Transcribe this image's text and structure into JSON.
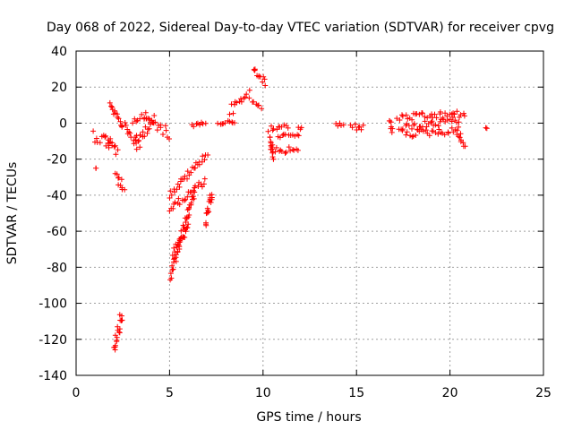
{
  "chart_data": {
    "type": "scatter",
    "title": "Day 068 of 2022, Sidereal Day-to-day VTEC variation (SDTVAR) for receiver cpvg",
    "xlabel": "GPS time / hours",
    "ylabel": "SDTVAR / TECUs",
    "xlim": [
      0,
      25
    ],
    "ylim": [
      -140,
      40
    ],
    "xticks": [
      0,
      5,
      10,
      15,
      20,
      25
    ],
    "yticks": [
      -140,
      -120,
      -100,
      -80,
      -60,
      -40,
      -20,
      0,
      20,
      40
    ],
    "xtick_labels": [
      "0",
      "5",
      "10",
      "15",
      "20",
      "25"
    ],
    "ytick_labels": [
      "-140",
      "-120",
      "-100",
      "-80",
      "-60",
      "-40",
      "-20",
      "0",
      "20",
      "40"
    ],
    "grid": true,
    "marker": "+",
    "color": "#ff0000",
    "segments": [
      {
        "name": "early-cluster",
        "x": [
          0.9,
          1.9
        ],
        "y": [
          -6,
          -12
        ],
        "spread": 4
      },
      {
        "name": "early-descent",
        "x": [
          1.6,
          2.2
        ],
        "y": [
          -8,
          -16
        ],
        "spread": 3
      },
      {
        "name": "lone-point",
        "x": [
          1.05,
          1.05
        ],
        "y": [
          -25,
          -25
        ],
        "spread": 0
      },
      {
        "name": "rise-1.9",
        "x": [
          1.8,
          2.5
        ],
        "y": [
          10,
          -2
        ],
        "spread": 1.5
      },
      {
        "name": "fall-2.3",
        "x": [
          2.1,
          2.4
        ],
        "y": [
          -28,
          -31
        ],
        "spread": 1
      },
      {
        "name": "fall-2.4",
        "x": [
          2.3,
          2.55
        ],
        "y": [
          -34,
          -37
        ],
        "spread": 1
      },
      {
        "name": "deep-low",
        "x": [
          2.05,
          2.45
        ],
        "y": [
          -124,
          -106
        ],
        "spread": 4
      },
      {
        "name": "hump-3",
        "x": [
          2.6,
          3.4
        ],
        "y": [
          -2,
          -14
        ],
        "spread": 3
      },
      {
        "name": "hump-3.5",
        "x": [
          3.2,
          4.2
        ],
        "y": [
          -10,
          2
        ],
        "spread": 3
      },
      {
        "name": "hump-4",
        "x": [
          3.7,
          5.0
        ],
        "y": [
          3,
          -6
        ],
        "spread": 3
      },
      {
        "name": "hump-4b",
        "x": [
          3.0,
          3.9
        ],
        "y": [
          2,
          4
        ],
        "spread": 2
      },
      {
        "name": "diag-upper",
        "x": [
          5.0,
          7.0
        ],
        "y": [
          -40,
          -17
        ],
        "spread": 2
      },
      {
        "name": "diag-middle",
        "x": [
          5.0,
          6.9
        ],
        "y": [
          -48,
          -32
        ],
        "spread": 2
      },
      {
        "name": "diag-lower",
        "x": [
          5.05,
          6.35
        ],
        "y": [
          -86,
          -36
        ],
        "spread": 3
      },
      {
        "name": "diag-lower-b",
        "x": [
          5.2,
          6.0
        ],
        "y": [
          -72,
          -58
        ],
        "spread": 2
      },
      {
        "name": "block-7",
        "x": [
          6.9,
          7.3
        ],
        "y": [
          -56,
          -38
        ],
        "spread": 3
      },
      {
        "name": "flat-6.4",
        "x": [
          6.2,
          6.9
        ],
        "y": [
          -1,
          -1
        ],
        "spread": 1.5
      },
      {
        "name": "flat-8",
        "x": [
          7.6,
          8.5
        ],
        "y": [
          0,
          1
        ],
        "spread": 1
      },
      {
        "name": "rise-8.4",
        "x": [
          8.2,
          9.3
        ],
        "y": [
          7,
          16
        ],
        "spread": 3
      },
      {
        "name": "rise-9.7",
        "x": [
          9.5,
          10.1
        ],
        "y": [
          31,
          22
        ],
        "spread": 2
      },
      {
        "name": "drop-9.6",
        "x": [
          9.4,
          9.9
        ],
        "y": [
          12,
          9
        ],
        "spread": 1
      },
      {
        "name": "band-10.5a",
        "x": [
          10.4,
          11.9
        ],
        "y": [
          -15,
          -15
        ],
        "spread": 2
      },
      {
        "name": "band-10.5b",
        "x": [
          10.4,
          11.3
        ],
        "y": [
          -3,
          -2
        ],
        "spread": 1.5
      },
      {
        "name": "band-10.5c",
        "x": [
          10.8,
          11.9
        ],
        "y": [
          -7,
          -7
        ],
        "spread": 1
      },
      {
        "name": "drop-10.4",
        "x": [
          10.3,
          10.6
        ],
        "y": [
          -6,
          -20
        ],
        "spread": 1.5
      },
      {
        "name": "stub-12",
        "x": [
          11.9,
          12.1
        ],
        "y": [
          -3,
          -3
        ],
        "spread": 1
      },
      {
        "name": "pair-14",
        "x": [
          13.9,
          14.3
        ],
        "y": [
          -1,
          -1
        ],
        "spread": 1.5
      },
      {
        "name": "pair-15",
        "x": [
          14.7,
          15.4
        ],
        "y": [
          -2,
          -2
        ],
        "spread": 2
      },
      {
        "name": "points-16.9",
        "x": [
          16.8,
          16.9
        ],
        "y": [
          2,
          -5
        ],
        "spread": 1
      },
      {
        "name": "band-17a",
        "x": [
          17.2,
          20.8
        ],
        "y": [
          3,
          5
        ],
        "spread": 2
      },
      {
        "name": "band-17b",
        "x": [
          17.3,
          20.5
        ],
        "y": [
          -3,
          2
        ],
        "spread": 2
      },
      {
        "name": "band-17c",
        "x": [
          17.5,
          20.6
        ],
        "y": [
          -6,
          -4
        ],
        "spread": 2
      },
      {
        "name": "tail-20.6",
        "x": [
          20.4,
          20.8
        ],
        "y": [
          -6,
          -13
        ],
        "spread": 1
      },
      {
        "name": "stub-22",
        "x": [
          21.9,
          22.0
        ],
        "y": [
          -3,
          -3
        ],
        "spread": 0.5
      }
    ]
  }
}
